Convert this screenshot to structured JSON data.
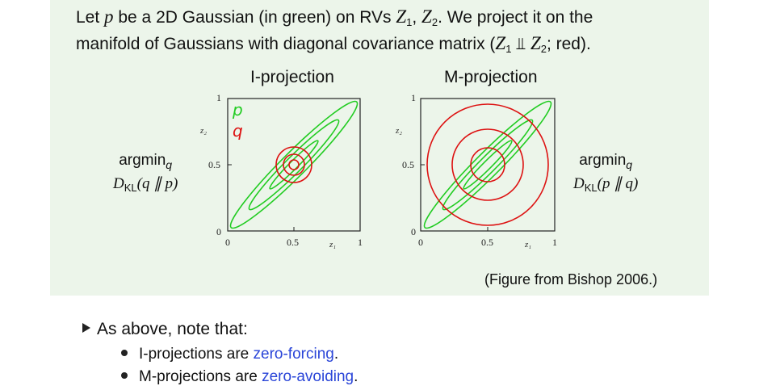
{
  "intro": {
    "line1": {
      "t1": "Let ",
      "p": "p",
      "t2": " be a 2D Gaussian (in green) on RVs ",
      "z1": "Z",
      "z1sub": "1",
      "comma": ", ",
      "z2": "Z",
      "z2sub": "2",
      "t3": ".  We project it on the"
    },
    "line2": {
      "t1": "manifold of Gaussians with diagonal covariance matrix (",
      "z1": "Z",
      "z1sub": "1",
      "indep": " ⫫ ",
      "z2": "Z",
      "z2sub": "2",
      "t2": "; red)."
    }
  },
  "plots": {
    "i_projection": {
      "title": "I-projection",
      "side_label": {
        "argmin": "argmin",
        "sub": "q",
        "D": "D",
        "kl": "KL",
        "args": "(q ∥ p)"
      },
      "legend": {
        "p": "p",
        "q": "q"
      },
      "ticks": {
        "y1": "1",
        "y05": "0.5",
        "y0": "0",
        "x0": "0",
        "x05": "0.5",
        "x1": "1"
      },
      "axis_labels": {
        "y": "z₂",
        "x": "z₁"
      }
    },
    "m_projection": {
      "title": "M-projection",
      "side_label": {
        "argmin": "argmin",
        "sub": "q",
        "D": "D",
        "kl": "KL",
        "args": "(p ∥ q)"
      },
      "ticks": {
        "y1": "1",
        "y05": "0.5",
        "y0": "0",
        "x0": "0",
        "x05": "0.5",
        "x1": "1"
      },
      "axis_labels": {
        "y": "z₂",
        "x": "z₁"
      }
    }
  },
  "credit": "(Figure from Bishop 2006.)",
  "notes": {
    "main": "As above, note that:",
    "items": [
      {
        "t1": "I-projections are ",
        "hl": "zero-forcing",
        "t2": "."
      },
      {
        "t1": "M-projections are ",
        "hl": "zero-avoiding",
        "t2": "."
      }
    ]
  },
  "colors": {
    "green": "#22cc22",
    "red": "#dd1111",
    "highlight": "#2a45d8",
    "box": "#ecf5ea"
  }
}
